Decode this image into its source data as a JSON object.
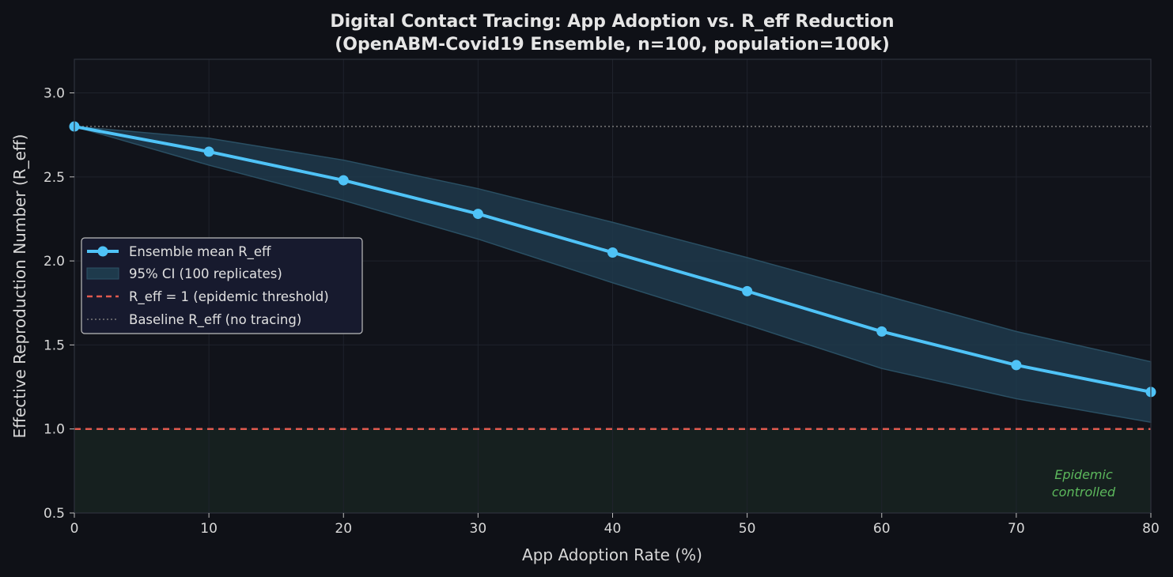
{
  "chart_data": {
    "type": "line",
    "title_line1": "Digital Contact Tracing: App Adoption vs. R_eff Reduction",
    "title_line2": "(OpenABM-Covid19 Ensemble, n=100, population=100k)",
    "xlabel": "App Adoption Rate (%)",
    "ylabel": "Effective Reproduction Number (R_eff)",
    "xlim": [
      0,
      80
    ],
    "ylim": [
      0.5,
      3.2
    ],
    "x_ticks": [
      "0",
      "10",
      "20",
      "30",
      "40",
      "50",
      "60",
      "70",
      "80"
    ],
    "y_ticks": [
      "0.5",
      "1.0",
      "1.5",
      "2.0",
      "2.5",
      "3.0"
    ],
    "x": [
      0,
      10,
      20,
      30,
      40,
      50,
      60,
      70,
      80
    ],
    "series": [
      {
        "name": "Ensemble mean R_eff",
        "values": [
          2.8,
          2.65,
          2.48,
          2.28,
          2.05,
          1.82,
          1.58,
          1.38,
          1.22
        ],
        "color": "#4fc3f7"
      }
    ],
    "ci_band": {
      "name": "95% CI (100 replicates)",
      "upper": [
        2.8,
        2.73,
        2.6,
        2.43,
        2.23,
        2.02,
        1.8,
        1.58,
        1.4
      ],
      "lower": [
        2.8,
        2.57,
        2.36,
        2.13,
        1.87,
        1.62,
        1.36,
        1.18,
        1.04
      ],
      "color": "#1e3a4c"
    },
    "threshold": {
      "name": "R_eff = 1 (epidemic threshold)",
      "value": 1.0,
      "color": "#e05a4f"
    },
    "baseline": {
      "name": "Baseline R_eff (no tracing)",
      "value": 2.8,
      "color": "#7a7a7a"
    },
    "controlled_region": {
      "label_line1": "Epidemic",
      "label_line2": "controlled",
      "color": "#5cb85c",
      "range": [
        0.5,
        1.0
      ]
    },
    "grid": true,
    "legend_position": "center-left"
  }
}
